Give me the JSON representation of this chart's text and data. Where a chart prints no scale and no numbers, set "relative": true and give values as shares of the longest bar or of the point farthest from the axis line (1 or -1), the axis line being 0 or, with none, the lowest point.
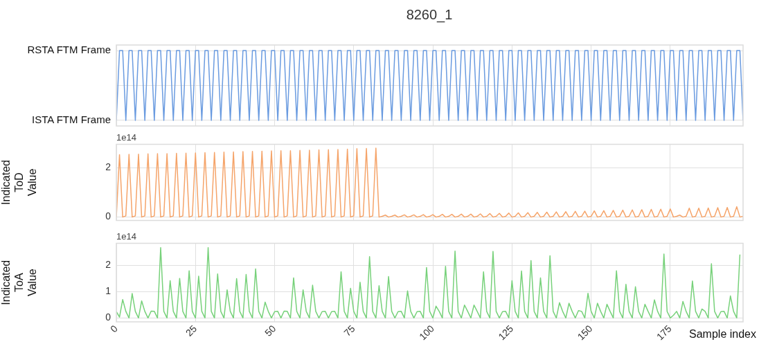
{
  "chart_data": [
    {
      "type": "line",
      "title": "8260_1",
      "x": [
        0,
        1,
        2,
        3,
        4,
        5,
        6,
        7,
        8,
        9,
        10,
        11,
        12,
        13,
        14,
        15,
        16,
        17,
        18,
        19,
        20,
        21,
        22,
        23,
        24,
        25,
        26,
        27,
        28,
        29,
        30,
        31,
        32,
        33,
        34,
        35,
        36,
        37,
        38,
        39,
        40,
        41,
        42,
        43,
        44,
        45,
        46,
        47,
        48,
        49,
        50,
        51,
        52,
        53,
        54,
        55,
        56,
        57,
        58,
        59,
        60,
        61,
        62,
        63,
        64,
        65,
        66,
        67,
        68,
        69,
        70,
        71,
        72,
        73,
        74,
        75,
        76,
        77,
        78,
        79,
        80,
        81,
        82,
        83,
        84,
        85,
        86,
        87,
        88,
        89,
        90,
        91,
        92,
        93,
        94,
        95,
        96,
        97,
        98,
        99,
        100,
        101,
        102,
        103,
        104,
        105,
        106,
        107,
        108,
        109,
        110,
        111,
        112,
        113,
        114,
        115,
        116,
        117,
        118,
        119,
        120,
        121,
        122,
        123,
        124,
        125,
        126,
        127,
        128,
        129,
        130,
        131,
        132,
        133,
        134,
        135,
        136,
        137,
        138,
        139,
        140,
        141,
        142,
        143,
        144,
        145,
        146,
        147,
        148,
        149,
        150,
        151,
        152,
        153,
        154,
        155,
        156,
        157,
        158,
        159,
        160,
        161,
        162,
        163,
        164,
        165,
        166,
        167,
        168,
        169,
        170,
        171,
        172,
        173,
        174,
        175,
        176,
        177,
        178,
        179,
        180,
        181,
        182,
        183,
        184,
        185,
        186,
        187,
        188,
        189,
        190,
        191,
        192,
        193,
        194,
        195,
        196,
        197,
        198
      ],
      "series": [
        {
          "color": "#6a9be0",
          "values": [
            0,
            1,
            1,
            0,
            1,
            1,
            0,
            1,
            1,
            0,
            1,
            1,
            0,
            1,
            1,
            0,
            1,
            1,
            0,
            1,
            1,
            0,
            1,
            1,
            0,
            1,
            1,
            0,
            1,
            1,
            0,
            1,
            1,
            0,
            1,
            1,
            0,
            1,
            1,
            0,
            1,
            1,
            0,
            1,
            1,
            0,
            1,
            1,
            0,
            1,
            1,
            0,
            1,
            1,
            0,
            1,
            1,
            0,
            1,
            1,
            0,
            1,
            1,
            0,
            1,
            1,
            0,
            1,
            1,
            0,
            1,
            1,
            0,
            1,
            1,
            0,
            1,
            1,
            0,
            1,
            1,
            0,
            1,
            1,
            0,
            1,
            1,
            0,
            1,
            1,
            0,
            1,
            1,
            0,
            1,
            1,
            0,
            1,
            1,
            0,
            1,
            1,
            0,
            1,
            1,
            0,
            1,
            1,
            0,
            1,
            1,
            0,
            1,
            1,
            0,
            1,
            1,
            0,
            1,
            1,
            0,
            1,
            1,
            0,
            1,
            1,
            0,
            1,
            1,
            0,
            1,
            1,
            0,
            1,
            1,
            0,
            1,
            1,
            0,
            1,
            1,
            0,
            1,
            1,
            0,
            1,
            1,
            0,
            1,
            1,
            0,
            1,
            1,
            0,
            1,
            1,
            0,
            1,
            1,
            0,
            1,
            1,
            0,
            1,
            1,
            0,
            1,
            1,
            0,
            1,
            1,
            0,
            1,
            1,
            0,
            1,
            1,
            0,
            1,
            1,
            0,
            1,
            1,
            0,
            1,
            1,
            0,
            1,
            1,
            0,
            1,
            1,
            0,
            1,
            1,
            0,
            1,
            1,
            0
          ]
        }
      ],
      "xlim": [
        0,
        198
      ],
      "xticks": [
        0,
        25,
        50,
        75,
        100,
        125,
        150,
        175
      ],
      "relative": true,
      "annotations": [
        "RSTA FTM Frame",
        "ISTA FTM Frame"
      ],
      "grid": true,
      "tick_labels": false,
      "marker": "none"
    },
    {
      "type": "line",
      "ylabel": "Indicated ToD Value",
      "annotations": [
        "1e14"
      ],
      "x": [
        0,
        1,
        2,
        3,
        4,
        5,
        6,
        7,
        8,
        9,
        10,
        11,
        12,
        13,
        14,
        15,
        16,
        17,
        18,
        19,
        20,
        21,
        22,
        23,
        24,
        25,
        26,
        27,
        28,
        29,
        30,
        31,
        32,
        33,
        34,
        35,
        36,
        37,
        38,
        39,
        40,
        41,
        42,
        43,
        44,
        45,
        46,
        47,
        48,
        49,
        50,
        51,
        52,
        53,
        54,
        55,
        56,
        57,
        58,
        59,
        60,
        61,
        62,
        63,
        64,
        65,
        66,
        67,
        68,
        69,
        70,
        71,
        72,
        73,
        74,
        75,
        76,
        77,
        78,
        79,
        80,
        81,
        82,
        83,
        84,
        85,
        86,
        87,
        88,
        89,
        90,
        91,
        92,
        93,
        94,
        95,
        96,
        97,
        98,
        99,
        100,
        101,
        102,
        103,
        104,
        105,
        106,
        107,
        108,
        109,
        110,
        111,
        112,
        113,
        114,
        115,
        116,
        117,
        118,
        119,
        120,
        121,
        122,
        123,
        124,
        125,
        126,
        127,
        128,
        129,
        130,
        131,
        132,
        133,
        134,
        135,
        136,
        137,
        138,
        139,
        140,
        141,
        142,
        143,
        144,
        145,
        146,
        147,
        148,
        149,
        150,
        151,
        152,
        153,
        154,
        155,
        156,
        157,
        158,
        159,
        160,
        161,
        162,
        163,
        164,
        165,
        166,
        167,
        168,
        169,
        170,
        171,
        172,
        173,
        174,
        175,
        176,
        177,
        178,
        179,
        180,
        181,
        182,
        183,
        184,
        185,
        186,
        187,
        188,
        189,
        190,
        191,
        192,
        193,
        194,
        195,
        196,
        197,
        198
      ],
      "series": [
        {
          "color": "#f5a46a",
          "values": [
            0,
            2.53,
            0,
            0.05,
            2.54,
            0,
            0.05,
            2.55,
            0,
            0.05,
            2.56,
            0,
            0.05,
            2.57,
            0,
            0.05,
            2.57,
            0,
            0.05,
            2.58,
            0,
            0.05,
            2.59,
            0,
            0.05,
            2.6,
            0,
            0.05,
            2.61,
            0,
            0.05,
            2.62,
            0,
            0.05,
            2.63,
            0,
            0.05,
            2.64,
            0,
            0.05,
            2.65,
            0,
            0.05,
            2.66,
            0,
            0.05,
            2.67,
            0,
            0.05,
            2.68,
            0,
            0.05,
            2.69,
            0,
            0.05,
            2.69,
            0,
            0.05,
            2.7,
            0,
            0.05,
            2.71,
            0,
            0.05,
            2.72,
            0,
            0.05,
            2.73,
            0,
            0.05,
            2.74,
            0,
            0.05,
            2.75,
            0,
            0.05,
            2.77,
            0,
            0.05,
            2.78,
            0,
            0.05,
            2.79,
            0,
            0.03,
            0.08,
            0,
            0.03,
            0.08,
            0,
            0.03,
            0.09,
            0,
            0.03,
            0.09,
            0,
            0.03,
            0.1,
            0,
            0.03,
            0.1,
            0,
            0.03,
            0.11,
            0,
            0.03,
            0.11,
            0,
            0.03,
            0.12,
            0,
            0.03,
            0.12,
            0,
            0.03,
            0.13,
            0,
            0.03,
            0.14,
            0,
            0.03,
            0.15,
            0,
            0.03,
            0.16,
            0,
            0.03,
            0.17,
            0,
            0.03,
            0.18,
            0,
            0.03,
            0.19,
            0,
            0.03,
            0.2,
            0,
            0.03,
            0.21,
            0,
            0.03,
            0.22,
            0,
            0.03,
            0.23,
            0,
            0.03,
            0.24,
            0,
            0.03,
            0.25,
            0,
            0.03,
            0.26,
            0,
            0.03,
            0.27,
            0,
            0.03,
            0.28,
            0,
            0.03,
            0.29,
            0,
            0.03,
            0.3,
            0,
            0.03,
            0.31,
            0,
            0.03,
            0.32,
            0,
            0.03,
            0.33,
            0,
            0.03,
            0.08,
            0,
            0.03,
            0.36,
            0,
            0.03,
            0.36,
            0,
            0.03,
            0.37,
            0,
            0.03,
            0.38,
            0,
            0.03,
            0.39,
            0,
            0.03,
            0.42,
            0,
            0.03
          ]
        }
      ],
      "xlim": [
        0,
        198
      ],
      "xticks": [
        0,
        25,
        50,
        75,
        100,
        125,
        150,
        175
      ],
      "ylim": [
        -0.14,
        2.95
      ],
      "yticks": [
        0,
        2
      ],
      "grid": true,
      "tick_labels": "y",
      "marker": "none"
    },
    {
      "type": "line",
      "ylabel": "Indicated ToA Value",
      "xlabel": "Sample index",
      "annotations": [
        "1e14"
      ],
      "x": [
        0,
        1,
        2,
        3,
        4,
        5,
        6,
        7,
        8,
        9,
        10,
        11,
        12,
        13,
        14,
        15,
        16,
        17,
        18,
        19,
        20,
        21,
        22,
        23,
        24,
        25,
        26,
        27,
        28,
        29,
        30,
        31,
        32,
        33,
        34,
        35,
        36,
        37,
        38,
        39,
        40,
        41,
        42,
        43,
        44,
        45,
        46,
        47,
        48,
        49,
        50,
        51,
        52,
        53,
        54,
        55,
        56,
        57,
        58,
        59,
        60,
        61,
        62,
        63,
        64,
        65,
        66,
        67,
        68,
        69,
        70,
        71,
        72,
        73,
        74,
        75,
        76,
        77,
        78,
        79,
        80,
        81,
        82,
        83,
        84,
        85,
        86,
        87,
        88,
        89,
        90,
        91,
        92,
        93,
        94,
        95,
        96,
        97,
        98,
        99,
        100,
        101,
        102,
        103,
        104,
        105,
        106,
        107,
        108,
        109,
        110,
        111,
        112,
        113,
        114,
        115,
        116,
        117,
        118,
        119,
        120,
        121,
        122,
        123,
        124,
        125,
        126,
        127,
        128,
        129,
        130,
        131,
        132,
        133,
        134,
        135,
        136,
        137,
        138,
        139,
        140,
        141,
        142,
        143,
        144,
        145,
        146,
        147,
        148,
        149,
        150,
        151,
        152,
        153,
        154,
        155,
        156,
        157,
        158,
        159,
        160,
        161,
        162,
        163,
        164,
        165,
        166,
        167,
        168,
        169,
        170,
        171,
        172,
        173,
        174,
        175,
        176,
        177,
        178,
        179,
        180,
        181,
        182,
        183,
        184,
        185,
        186,
        187,
        188,
        189,
        190,
        191,
        192,
        193,
        194,
        195,
        196,
        197
      ],
      "series": [
        {
          "color": "#77d17a",
          "values": [
            0.24,
            0.03,
            0.7,
            0.25,
            0,
            0.93,
            0.25,
            0,
            0.65,
            0.25,
            0,
            0.26,
            0.25,
            0,
            2.68,
            0.25,
            0,
            1.42,
            0.25,
            0,
            1.51,
            0.25,
            0,
            1.8,
            0.25,
            0,
            1.59,
            0.25,
            0,
            2.68,
            0.25,
            0,
            1.68,
            0.25,
            0,
            1.07,
            0.25,
            0,
            1.5,
            0.25,
            0,
            1.66,
            0.25,
            0,
            1.87,
            0.25,
            0,
            0.6,
            0.25,
            0,
            0.24,
            0.25,
            0,
            0.26,
            0.25,
            0,
            1.53,
            0.25,
            0,
            1.07,
            0.25,
            0,
            1.25,
            0.25,
            0,
            0.24,
            0.25,
            0,
            0.24,
            0.25,
            0,
            1.76,
            0.25,
            0,
            1.13,
            0.25,
            0,
            1.36,
            0.25,
            0,
            2.34,
            0.25,
            0,
            1.23,
            0.25,
            0,
            1.58,
            0.25,
            0,
            0.24,
            0.25,
            0,
            1.03,
            0.25,
            0,
            0.24,
            0.25,
            0,
            1.92,
            0.25,
            0,
            0.45,
            0.25,
            0,
            1.97,
            0.25,
            0,
            2.55,
            0.25,
            0,
            0.49,
            0.25,
            0,
            0.49,
            0.25,
            0,
            1.76,
            0.25,
            0,
            2.54,
            0.25,
            0,
            0.24,
            0.25,
            0,
            1.42,
            0.25,
            0,
            1.79,
            0.25,
            0,
            2.19,
            0.25,
            0,
            1.53,
            0.25,
            0,
            2.37,
            0.25,
            0,
            0.58,
            0.25,
            0,
            0.56,
            0.25,
            0,
            0.28,
            0.25,
            0,
            0.94,
            0.25,
            0,
            0.56,
            0.25,
            0,
            0.52,
            0.25,
            0,
            1.8,
            0.25,
            0,
            1.28,
            0.25,
            0,
            1.19,
            0.25,
            0,
            0.52,
            0.25,
            0,
            0.69,
            0.25,
            0,
            2.44,
            0.25,
            0,
            0.1,
            0.25,
            0,
            0.63,
            0.25,
            0,
            1.41,
            0.25,
            0,
            0.34,
            0.25,
            0,
            2.07,
            0.25,
            0,
            0.24,
            0.25,
            0,
            0.84,
            0.25,
            0,
            2.42
          ]
        }
      ],
      "xlim": [
        0,
        198
      ],
      "xticks": [
        0,
        25,
        50,
        75,
        100,
        125,
        150,
        175
      ],
      "ylim": [
        -0.15,
        2.85
      ],
      "yticks": [
        0,
        1,
        2
      ],
      "grid": true,
      "marker": "none"
    }
  ]
}
